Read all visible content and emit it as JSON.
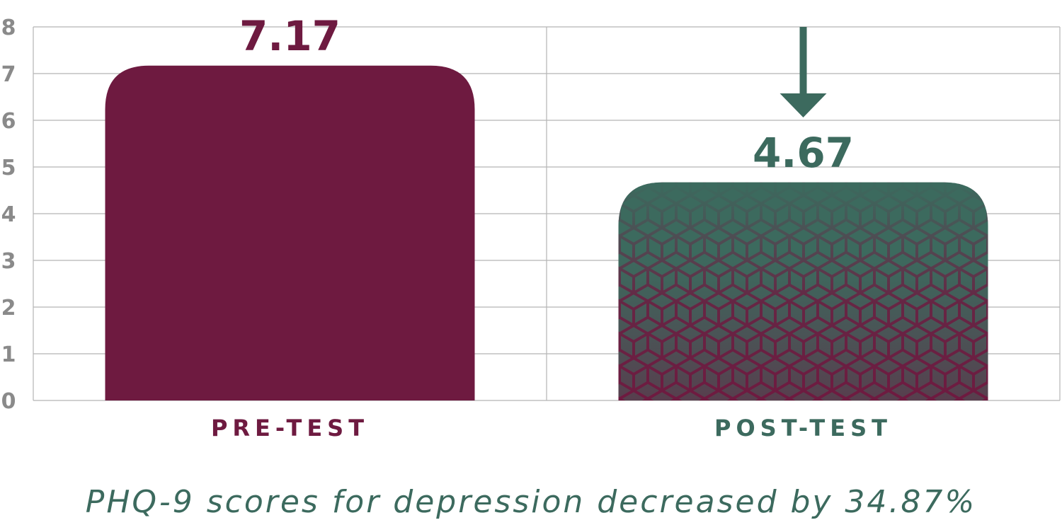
{
  "chart_data": {
    "type": "bar",
    "title": "",
    "xlabel": "",
    "ylabel": "",
    "ylim": [
      0,
      8
    ],
    "yticks": [
      "0",
      "1",
      "2",
      "3",
      "4",
      "5",
      "6",
      "7",
      "8"
    ],
    "grid": true,
    "categories": [
      "PRE-TEST",
      "POST-TEST"
    ],
    "values": [
      7.17,
      4.67
    ],
    "value_labels": [
      "7.17",
      "4.67"
    ],
    "colors": [
      "#6e1a40",
      "#3c6a5e"
    ],
    "annotation": "down-arrow-icon",
    "caption": "PHQ-9 scores for depression decreased by 34.87%"
  },
  "colors": {
    "maroon": "#6e1a40",
    "green": "#3c6a5e",
    "tick_text": "#8a8a8a",
    "grid": "#b5b5b5"
  }
}
